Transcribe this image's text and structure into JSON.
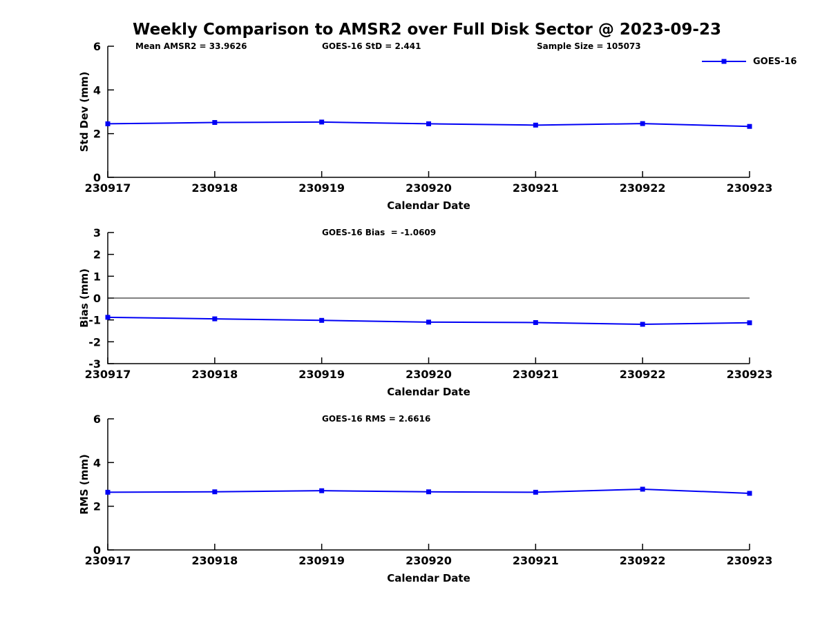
{
  "page": {
    "title": "Weekly Comparison to AMSR2 over Full Disk Sector @ 2023-09-23"
  },
  "legend": {
    "label": "GOES-16",
    "color": "#0000F5"
  },
  "colors": {
    "series": "#0000F5",
    "axis": "#000000"
  },
  "chart_data": [
    {
      "type": "line",
      "id": "std-dev",
      "ylabel": "Std Dev (mm)",
      "xlabel": "Calendar Date",
      "categories": [
        "230917",
        "230918",
        "230919",
        "230920",
        "230921",
        "230922",
        "230923"
      ],
      "ylim": [
        0,
        6
      ],
      "yticks": [
        0,
        2,
        4,
        6
      ],
      "grid": false,
      "zero_line": false,
      "legend_position": "top-right",
      "annotations": [
        "Mean AMSR2 = 33.9626",
        "GOES-16 StD = 2.441",
        "Sample Size = 105073"
      ],
      "series": [
        {
          "name": "GOES-16",
          "color": "#0000F5",
          "marker": "square",
          "values": [
            2.45,
            2.51,
            2.53,
            2.45,
            2.39,
            2.46,
            2.33
          ]
        }
      ]
    },
    {
      "type": "line",
      "id": "bias",
      "ylabel": "Bias (mm)",
      "xlabel": "Calendar Date",
      "categories": [
        "230917",
        "230918",
        "230919",
        "230920",
        "230921",
        "230922",
        "230923"
      ],
      "ylim": [
        -3,
        3
      ],
      "yticks": [
        -3,
        -2,
        -1,
        0,
        1,
        2,
        3
      ],
      "grid": false,
      "zero_line": true,
      "annotations": [
        "GOES-16 Bias  = -1.0609"
      ],
      "series": [
        {
          "name": "GOES-16",
          "color": "#0000F5",
          "marker": "square",
          "values": [
            -0.88,
            -0.95,
            -1.02,
            -1.1,
            -1.12,
            -1.2,
            -1.13
          ]
        }
      ]
    },
    {
      "type": "line",
      "id": "rms",
      "ylabel": "RMS (mm)",
      "xlabel": "Calendar Date",
      "categories": [
        "230917",
        "230918",
        "230919",
        "230920",
        "230921",
        "230922",
        "230923"
      ],
      "ylim": [
        0,
        6
      ],
      "yticks": [
        0,
        2,
        4,
        6
      ],
      "grid": false,
      "zero_line": false,
      "annotations": [
        "GOES-16 RMS = 2.6616"
      ],
      "series": [
        {
          "name": "GOES-16",
          "color": "#0000F5",
          "marker": "square",
          "values": [
            2.64,
            2.66,
            2.71,
            2.66,
            2.64,
            2.78,
            2.59
          ]
        }
      ]
    }
  ]
}
